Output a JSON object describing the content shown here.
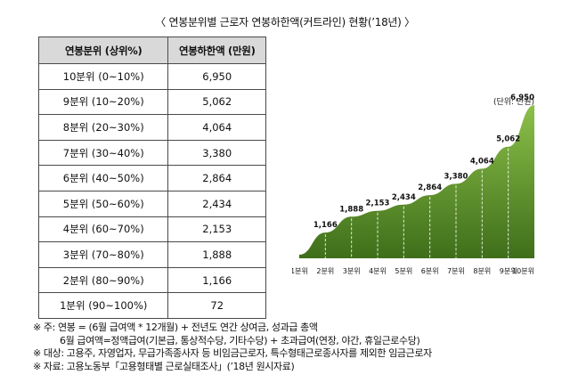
{
  "title": "〈 연봉분위별 근로자 연봉하한액(커트라인) 현황(’18년) 〉",
  "table": {
    "headers": [
      "연봉분위 (상위%)",
      "연봉하한액 (만원)"
    ],
    "rows": [
      {
        "decile": "10분위 (0~10%)",
        "value": "6,950"
      },
      {
        "decile": "9분위 (10~20%)",
        "value": "5,062"
      },
      {
        "decile": "8분위 (20~30%)",
        "value": "4,064"
      },
      {
        "decile": "7분위 (30~40%)",
        "value": "3,380"
      },
      {
        "decile": "6분위 (40~50%)",
        "value": "2,864"
      },
      {
        "decile": "5분위 (50~60%)",
        "value": "2,434"
      },
      {
        "decile": "4분위 (60~70%)",
        "value": "2,153"
      },
      {
        "decile": "3분위 (70~80%)",
        "value": "1,888"
      },
      {
        "decile": "2분위 (80~90%)",
        "value": "1,166"
      },
      {
        "decile": "1분위 (90~100%)",
        "value": "72"
      }
    ]
  },
  "chart_data": {
    "type": "area",
    "unit_label": "(단위: 만원)",
    "categories": [
      "1분위",
      "2분위",
      "3분위",
      "4분위",
      "5분위",
      "6분위",
      "7분위",
      "8분위",
      "9분위",
      "10분위"
    ],
    "values": [
      72,
      1166,
      1888,
      2153,
      2434,
      2864,
      3380,
      4064,
      5062,
      6950
    ],
    "value_labels": [
      "",
      "1,166",
      "1,888",
      "2,153",
      "2,434",
      "2,864",
      "3,380",
      "4,064",
      "5,062",
      "6,950"
    ],
    "colors": {
      "fill_top": "#8cc04a",
      "fill_bottom": "#3f6e1a",
      "gridline": "#ffffff"
    }
  },
  "notes": [
    "※ 주: 연봉 = (6월 급여액 * 12개월) + 전년도 연간 상여금, 성과급 총액",
    "6월 급여액=정액급여(기본급, 통상적수당, 기타수당) + 초과급여(연장, 야간, 휴일근로수당)",
    "※ 대상: 고용주, 자영업자, 무급가족종사자 등 비임금근로자, 특수형태근로종사자를 제외한 임금근로자",
    "※ 자료: 고용노동부「고용형태별 근로실태조사」(’18년 원시자료)"
  ]
}
